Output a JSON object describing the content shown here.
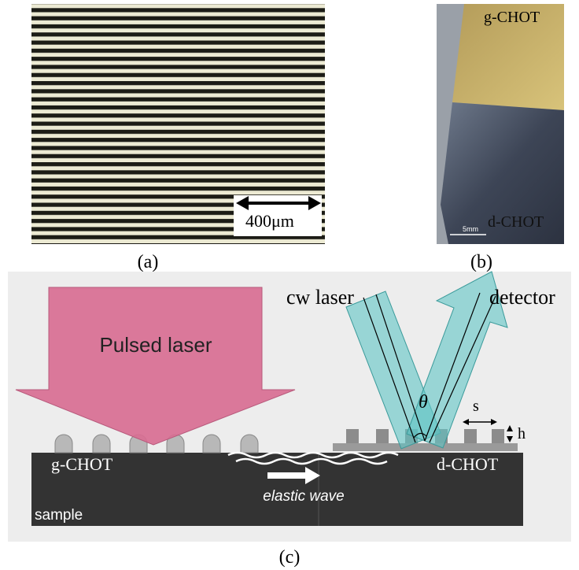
{
  "panel_a": {
    "scale_bar": "400μm",
    "caption": "(a)"
  },
  "panel_b": {
    "top_label": "g-CHOT",
    "bottom_label": "d-CHOT",
    "scale_bar": "5mm",
    "caption": "(b)"
  },
  "panel_c": {
    "cw_laser": "cw laser",
    "detector": "detector",
    "pulsed_laser": "Pulsed laser",
    "angle": "θ",
    "spacing": "s",
    "height": "h",
    "left_grating": "g-CHOT",
    "right_grating": "d-CHOT",
    "wave": "elastic wave",
    "sample": "sample",
    "caption": "(c)"
  }
}
